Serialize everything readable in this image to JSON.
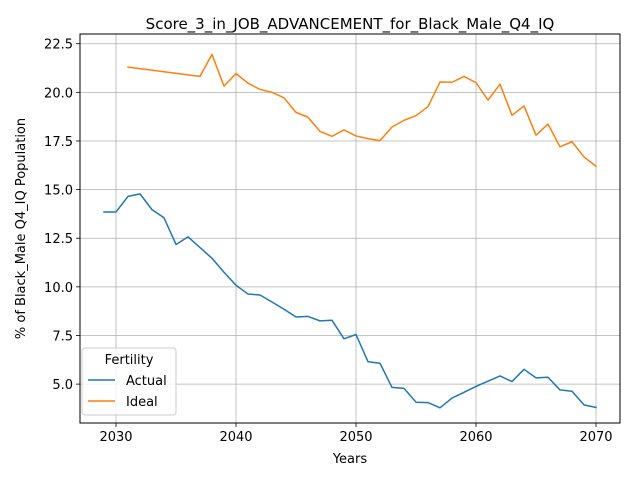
{
  "chart_data": {
    "type": "line",
    "title": "Score_3_in_JOB_ADVANCEMENT_for_Black_Male_Q4_IQ",
    "xlabel": "Years",
    "ylabel": "% of Black_Male Q4_IQ Population",
    "xlim": [
      2027,
      2072
    ],
    "ylim": [
      3.0,
      23.0
    ],
    "xticks": [
      2030,
      2040,
      2050,
      2060,
      2070
    ],
    "yticks": [
      5.0,
      7.5,
      10.0,
      12.5,
      15.0,
      17.5,
      20.0,
      22.5
    ],
    "grid": true,
    "legend": {
      "title": "Fertility",
      "placement": "lower-left"
    },
    "series": [
      {
        "name": "Actual",
        "color": "#1f77b4",
        "x": [
          2029,
          2030,
          2031,
          2032,
          2033,
          2034,
          2035,
          2036,
          2037,
          2038,
          2039,
          2040,
          2041,
          2042,
          2043,
          2044,
          2045,
          2046,
          2047,
          2048,
          2049,
          2050,
          2051,
          2052,
          2053,
          2054,
          2055,
          2056,
          2057,
          2058,
          2059,
          2060,
          2061,
          2062,
          2063,
          2064,
          2065,
          2066,
          2067,
          2068,
          2069,
          2070
        ],
        "y": [
          13.85,
          13.85,
          14.65,
          14.78,
          13.97,
          13.55,
          12.18,
          12.57,
          12.02,
          11.47,
          10.75,
          10.08,
          9.63,
          9.58,
          9.22,
          8.85,
          8.45,
          8.48,
          8.25,
          8.28,
          7.33,
          7.55,
          6.15,
          6.07,
          4.83,
          4.78,
          4.07,
          4.05,
          3.78,
          4.28,
          4.58,
          4.88,
          5.15,
          5.42,
          5.13,
          5.76,
          5.32,
          5.35,
          4.7,
          4.63,
          3.93,
          3.8
        ]
      },
      {
        "name": "Ideal",
        "color": "#ff7f0e",
        "x": [
          2031,
          2037,
          2038,
          2039,
          2040,
          2041,
          2042,
          2043,
          2044,
          2045,
          2046,
          2047,
          2048,
          2049,
          2050,
          2051,
          2052,
          2053,
          2054,
          2055,
          2056,
          2057,
          2058,
          2059,
          2060,
          2061,
          2062,
          2063,
          2064,
          2065,
          2066,
          2067,
          2068,
          2069,
          2070
        ],
        "y": [
          21.3,
          20.82,
          21.95,
          20.32,
          20.97,
          20.47,
          20.15,
          20.0,
          19.72,
          18.97,
          18.72,
          17.99,
          17.74,
          18.07,
          17.76,
          17.62,
          17.52,
          18.22,
          18.56,
          18.8,
          19.27,
          20.53,
          20.52,
          20.82,
          20.5,
          19.6,
          20.42,
          18.82,
          19.3,
          17.8,
          18.37,
          17.2,
          17.46,
          16.68,
          16.2
        ]
      }
    ]
  }
}
